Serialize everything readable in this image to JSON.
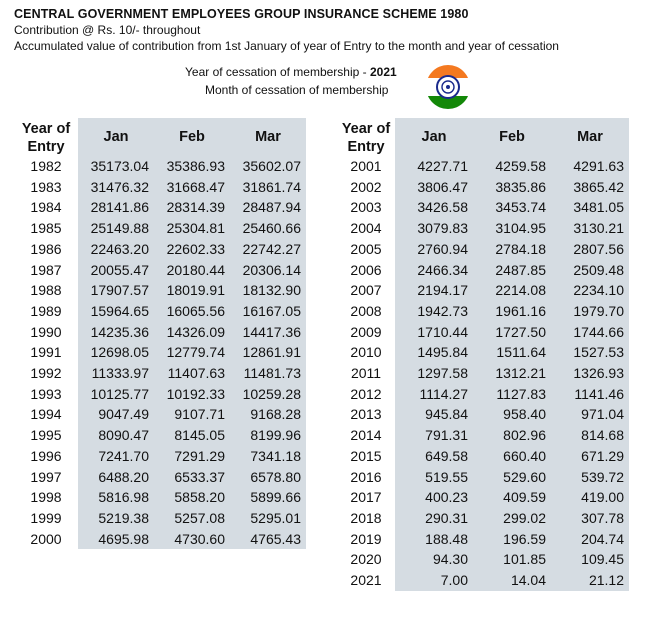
{
  "header": {
    "title": "CENTRAL GOVERNMENT EMPLOYEES GROUP INSURANCE SCHEME 1980",
    "contribution": "Contribution @ Rs. 10/- throughout",
    "description": "Accumulated value of contribution from 1st January of year of Entry to the month and year of cessation",
    "cessation_year_label": "Year of cessation of membership - ",
    "cessation_year": "2021",
    "cessation_month_label": "Month of cessation of membership"
  },
  "logo": {
    "icon": "ashoka-chakra-emblem-icon",
    "colors": [
      "#f47920",
      "#ffffff",
      "#138808",
      "#1a2a8c"
    ]
  },
  "table_headers": {
    "year": [
      "Year of",
      "Entry"
    ],
    "months": [
      "Jan",
      "Feb",
      "Mar"
    ]
  },
  "left_table": [
    [
      "1982",
      "35173.04",
      "35386.93",
      "35602.07"
    ],
    [
      "1983",
      "31476.32",
      "31668.47",
      "31861.74"
    ],
    [
      "1984",
      "28141.86",
      "28314.39",
      "28487.94"
    ],
    [
      "1985",
      "25149.88",
      "25304.81",
      "25460.66"
    ],
    [
      "1986",
      "22463.20",
      "22602.33",
      "22742.27"
    ],
    [
      "1987",
      "20055.47",
      "20180.44",
      "20306.14"
    ],
    [
      "1988",
      "17907.57",
      "18019.91",
      "18132.90"
    ],
    [
      "1989",
      "15964.65",
      "16065.56",
      "16167.05"
    ],
    [
      "1990",
      "14235.36",
      "14326.09",
      "14417.36"
    ],
    [
      "1991",
      "12698.05",
      "12779.74",
      "12861.91"
    ],
    [
      "1992",
      "11333.97",
      "11407.63",
      "11481.73"
    ],
    [
      "1993",
      "10125.77",
      "10192.33",
      "10259.28"
    ],
    [
      "1994",
      "9047.49",
      "9107.71",
      "9168.28"
    ],
    [
      "1995",
      "8090.47",
      "8145.05",
      "8199.96"
    ],
    [
      "1996",
      "7241.70",
      "7291.29",
      "7341.18"
    ],
    [
      "1997",
      "6488.20",
      "6533.37",
      "6578.80"
    ],
    [
      "1998",
      "5816.98",
      "5858.20",
      "5899.66"
    ],
    [
      "1999",
      "5219.38",
      "5257.08",
      "5295.01"
    ],
    [
      "2000",
      "4695.98",
      "4730.60",
      "4765.43"
    ]
  ],
  "right_table": [
    [
      "2001",
      "4227.71",
      "4259.58",
      "4291.63"
    ],
    [
      "2002",
      "3806.47",
      "3835.86",
      "3865.42"
    ],
    [
      "2003",
      "3426.58",
      "3453.74",
      "3481.05"
    ],
    [
      "2004",
      "3079.83",
      "3104.95",
      "3130.21"
    ],
    [
      "2005",
      "2760.94",
      "2784.18",
      "2807.56"
    ],
    [
      "2006",
      "2466.34",
      "2487.85",
      "2509.48"
    ],
    [
      "2007",
      "2194.17",
      "2214.08",
      "2234.10"
    ],
    [
      "2008",
      "1942.73",
      "1961.16",
      "1979.70"
    ],
    [
      "2009",
      "1710.44",
      "1727.50",
      "1744.66"
    ],
    [
      "2010",
      "1495.84",
      "1511.64",
      "1527.53"
    ],
    [
      "2011",
      "1297.58",
      "1312.21",
      "1326.93"
    ],
    [
      "2012",
      "1114.27",
      "1127.83",
      "1141.46"
    ],
    [
      "2013",
      "945.84",
      "958.40",
      "971.04"
    ],
    [
      "2014",
      "791.31",
      "802.96",
      "814.68"
    ],
    [
      "2015",
      "649.58",
      "660.40",
      "671.29"
    ],
    [
      "2016",
      "519.55",
      "529.60",
      "539.72"
    ],
    [
      "2017",
      "400.23",
      "409.59",
      "419.00"
    ],
    [
      "2018",
      "290.31",
      "299.02",
      "307.78"
    ],
    [
      "2019",
      "188.48",
      "196.59",
      "204.74"
    ],
    [
      "2020",
      "94.30",
      "101.85",
      "109.45"
    ],
    [
      "2021",
      "7.00",
      "14.04",
      "21.12"
    ]
  ]
}
